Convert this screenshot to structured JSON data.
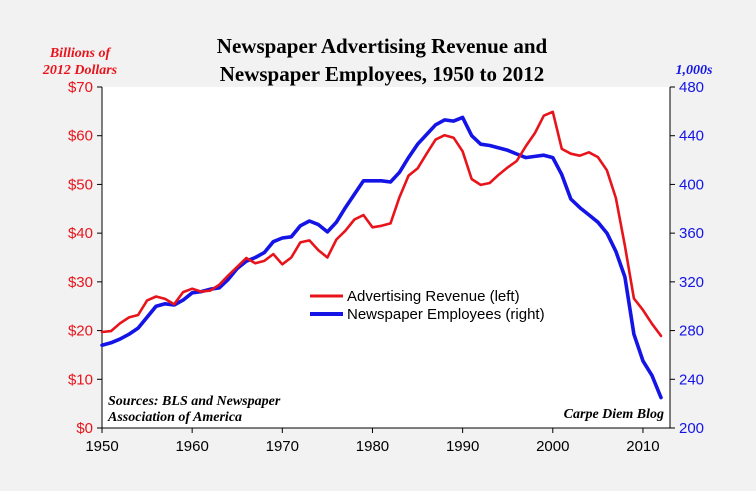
{
  "chart_data": {
    "type": "line",
    "title_line1": "Newspaper Advertising Revenue and",
    "title_line2": "Newspaper Employees, 1950 to 2012",
    "left_unit_line1": "Billions of",
    "left_unit_line2": "2012 Dollars",
    "right_unit": "1,000s",
    "xlim": [
      1950,
      2013
    ],
    "x_ticks": [
      1950,
      1960,
      1970,
      1980,
      1990,
      2000,
      2010
    ],
    "x_tick_labels": [
      "1950",
      "1960",
      "1970",
      "1980",
      "1990",
      "2000",
      "2010"
    ],
    "ylim_left": [
      0,
      70
    ],
    "y_left_ticks": [
      0,
      10,
      20,
      30,
      40,
      50,
      60,
      70
    ],
    "y_left_tick_labels": [
      "$0",
      "$10",
      "$20",
      "$30",
      "$40",
      "$50",
      "$60",
      "$70"
    ],
    "ylim_right": [
      200,
      480
    ],
    "y_right_ticks": [
      200,
      240,
      280,
      320,
      360,
      400,
      440,
      480
    ],
    "y_right_tick_labels": [
      "200",
      "240",
      "280",
      "320",
      "360",
      "400",
      "440",
      "480"
    ],
    "grid": false,
    "legend_position": "center-right",
    "colors": {
      "revenue": "#e8141b",
      "employees": "#1414e6",
      "left_axis": "#e8141b",
      "right_axis": "#1414e6"
    },
    "series": [
      {
        "name": "Advertising Revenue (left)",
        "axis": "left",
        "x": [
          1950,
          1951,
          1952,
          1953,
          1954,
          1955,
          1956,
          1957,
          1958,
          1959,
          1960,
          1961,
          1962,
          1963,
          1964,
          1965,
          1966,
          1967,
          1968,
          1969,
          1970,
          1971,
          1972,
          1973,
          1974,
          1975,
          1976,
          1977,
          1978,
          1979,
          1980,
          1981,
          1982,
          1983,
          1984,
          1985,
          1986,
          1987,
          1988,
          1989,
          1990,
          1991,
          1992,
          1993,
          1994,
          1995,
          1996,
          1997,
          1998,
          1999,
          2000,
          2001,
          2002,
          2003,
          2004,
          2005,
          2006,
          2007,
          2008,
          2009,
          2010,
          2011,
          2012
        ],
        "values": [
          19.7,
          19.9,
          21.5,
          22.7,
          23.2,
          26.2,
          27.0,
          26.5,
          25.4,
          27.9,
          28.6,
          28.0,
          28.2,
          29.4,
          31.3,
          33.1,
          34.9,
          33.8,
          34.3,
          35.7,
          33.6,
          35.0,
          38.1,
          38.5,
          36.5,
          35.0,
          38.7,
          40.5,
          42.8,
          43.7,
          41.2,
          41.5,
          42.0,
          47.4,
          51.8,
          53.3,
          56.3,
          59.2,
          60.1,
          59.6,
          56.8,
          51.1,
          49.9,
          50.3,
          52.0,
          53.5,
          54.8,
          57.8,
          60.5,
          64.1,
          64.9,
          57.3,
          56.3,
          55.9,
          56.6,
          55.6,
          52.9,
          47.2,
          37.4,
          26.6,
          24.2,
          21.4,
          18.9
        ]
      },
      {
        "name": "Newspaper Employees (right)",
        "axis": "right",
        "x": [
          1950,
          1951,
          1952,
          1953,
          1954,
          1955,
          1956,
          1957,
          1958,
          1959,
          1960,
          1961,
          1962,
          1963,
          1964,
          1965,
          1966,
          1967,
          1968,
          1969,
          1970,
          1971,
          1972,
          1973,
          1974,
          1975,
          1976,
          1977,
          1978,
          1979,
          1980,
          1981,
          1982,
          1983,
          1984,
          1985,
          1986,
          1987,
          1988,
          1989,
          1990,
          1991,
          1992,
          1993,
          1994,
          1995,
          1996,
          1997,
          1998,
          1999,
          2000,
          2001,
          2002,
          2003,
          2004,
          2005,
          2006,
          2007,
          2008,
          2009,
          2010,
          2011,
          2012
        ],
        "values": [
          268,
          270,
          273,
          277,
          282,
          291,
          300,
          302,
          301,
          305,
          311,
          312,
          314,
          315,
          322,
          331,
          337,
          340,
          344,
          353,
          356,
          357,
          366,
          370,
          367,
          361,
          369,
          381,
          392,
          403,
          403,
          403,
          402,
          410,
          422,
          433,
          441,
          449,
          453,
          452,
          455,
          440,
          433,
          432,
          430,
          428,
          425,
          422,
          423,
          424,
          422,
          408,
          388,
          381,
          375,
          369,
          360,
          345,
          324,
          277,
          255,
          243,
          225
        ]
      }
    ],
    "annotation_source_line1": "Sources: BLS and Newspaper",
    "annotation_source_line2": "Association of America",
    "annotation_credit": "Carpe Diem Blog"
  }
}
